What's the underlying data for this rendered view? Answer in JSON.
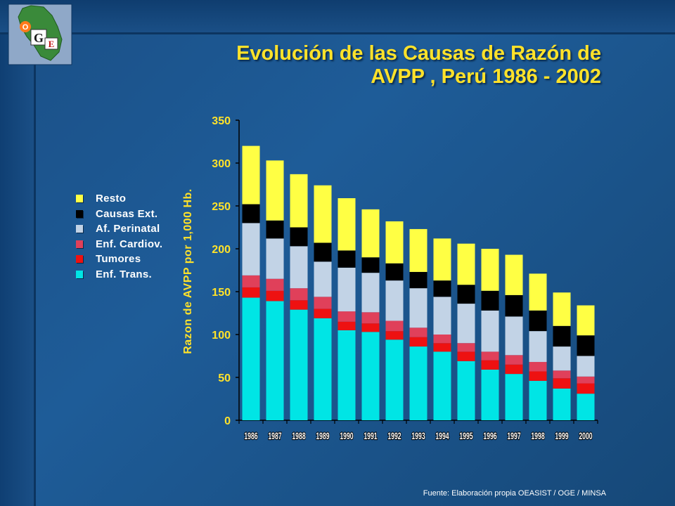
{
  "title_line1": "Evolución de las Causas de Razón de",
  "title_line2": "AVPP , Perú 1986 - 2002",
  "source": "Fuente: Elaboración propia OEASIST / OGE / MINSA",
  "logo": {
    "letter_o": "O",
    "letter_g": "G",
    "letter_e": "E"
  },
  "colors": {
    "background": "#1a4f86",
    "title": "#ffe22a",
    "axis_text": "#ffe22a",
    "tick_label": "#ffffff"
  },
  "chart_data": {
    "type": "bar",
    "stacked": true,
    "title": "Evolución de las Causas de Razón de AVPP , Perú 1986 - 2002",
    "xlabel": "",
    "ylabel": "Razon de AVPP por 1,000 Hb.",
    "ylim": [
      0,
      350
    ],
    "yticks": [
      0,
      50,
      100,
      150,
      200,
      250,
      300,
      350
    ],
    "grid": false,
    "legend_position": "left",
    "categories": [
      "1986",
      "1987",
      "1988",
      "1989",
      "1990",
      "1991",
      "1992",
      "1993",
      "1994",
      "1995",
      "1996",
      "1997",
      "1998",
      "1999",
      "2000"
    ],
    "series": [
      {
        "name": "Enf. Trans.",
        "color": "#00e5e5",
        "values": [
          143,
          139,
          129,
          119,
          105,
          103,
          94,
          86,
          80,
          69,
          59,
          54,
          46,
          37,
          31
        ]
      },
      {
        "name": "Tumores",
        "color": "#ee1111",
        "values": [
          12,
          12,
          11,
          11,
          10,
          10,
          10,
          11,
          10,
          11,
          11,
          11,
          11,
          12,
          12
        ]
      },
      {
        "name": "Enf. Cardiov.",
        "color": "#e0405a",
        "values": [
          14,
          14,
          14,
          14,
          12,
          13,
          12,
          11,
          10,
          10,
          10,
          11,
          11,
          9,
          8
        ]
      },
      {
        "name": "Af. Perinatal",
        "color": "#c2d3e6",
        "values": [
          61,
          47,
          49,
          41,
          51,
          46,
          47,
          46,
          44,
          46,
          48,
          45,
          36,
          28,
          24
        ]
      },
      {
        "name": "Causas Ext.",
        "color": "#000000",
        "values": [
          22,
          21,
          22,
          22,
          20,
          18,
          20,
          19,
          19,
          22,
          23,
          25,
          24,
          24,
          24
        ]
      },
      {
        "name": "Resto",
        "color": "#ffff44",
        "values": [
          68,
          70,
          62,
          67,
          61,
          56,
          49,
          50,
          49,
          48,
          49,
          47,
          43,
          39,
          35
        ]
      }
    ]
  }
}
